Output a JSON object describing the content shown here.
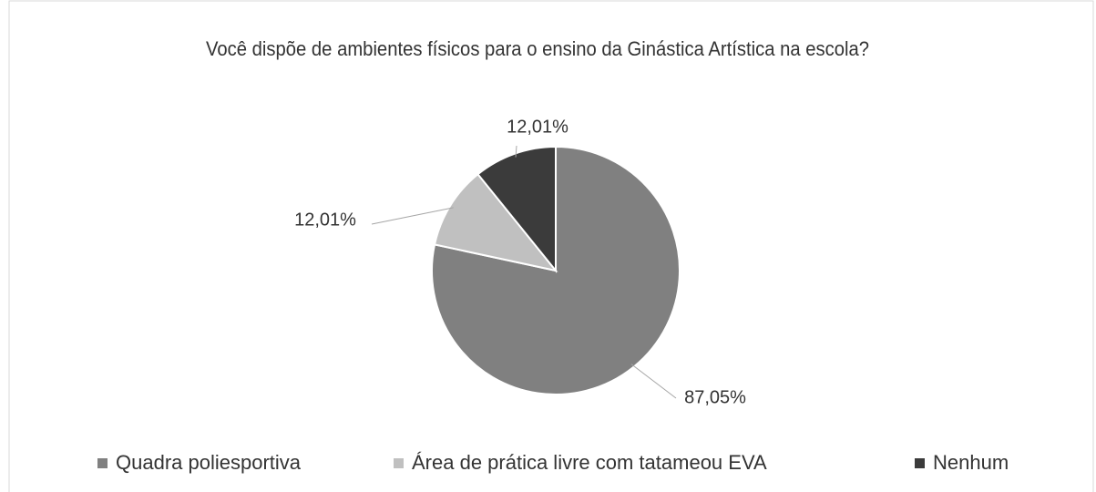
{
  "chart_data": {
    "type": "pie",
    "title": "Você dispõe de ambientes físicos para o ensino da Ginástica Artística na escola?",
    "categories": [
      "Quadra poliesportiva",
      "Área de prática livre com tatameou EVA",
      "Nenhum"
    ],
    "values": [
      87.05,
      12.01,
      12.01
    ],
    "value_labels": [
      "87,05%",
      "12,01%",
      "12,01%"
    ],
    "colors": [
      "#808080",
      "#c0c0c0",
      "#3b3b3b"
    ],
    "legend": "bottom"
  }
}
